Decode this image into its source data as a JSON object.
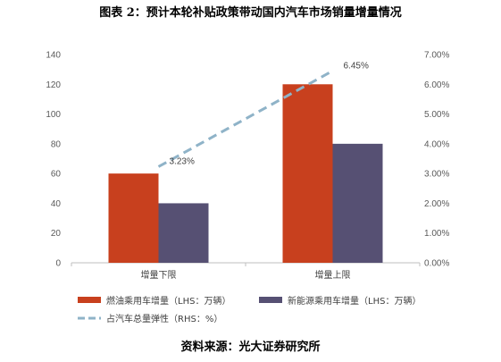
{
  "title": "图表 2：预计本轮补贴政策带动国内汽车市场销量增量情况",
  "source": "资料来源：光大证券研究所",
  "chart_data": {
    "type": "bar",
    "categories": [
      "增量下限",
      "增量上限"
    ],
    "series": [
      {
        "name": "燃油乘用车增量（LHS：万辆）",
        "values": [
          60,
          120
        ],
        "color": "#C8401E",
        "axis": "left",
        "kind": "bar"
      },
      {
        "name": "新能源乘用车增量（LHS：万辆）",
        "values": [
          40,
          80
        ],
        "color": "#565073",
        "axis": "left",
        "kind": "bar"
      },
      {
        "name": "占汽车总量弹性（RHS：%）",
        "values": [
          3.23,
          6.45
        ],
        "color": "#8FB3C8",
        "axis": "right",
        "kind": "line-dashed"
      }
    ],
    "data_labels": [
      "3.23%",
      "6.45%"
    ],
    "ylim_left": [
      0,
      140
    ],
    "yticks_left": [
      "0",
      "20",
      "40",
      "60",
      "80",
      "100",
      "120",
      "140"
    ],
    "ylim_right": [
      0,
      7
    ],
    "yticks_right": [
      "0.00%",
      "1.00%",
      "2.00%",
      "3.00%",
      "4.00%",
      "5.00%",
      "6.00%",
      "7.00%"
    ],
    "grid": false,
    "legend_position": "bottom"
  }
}
